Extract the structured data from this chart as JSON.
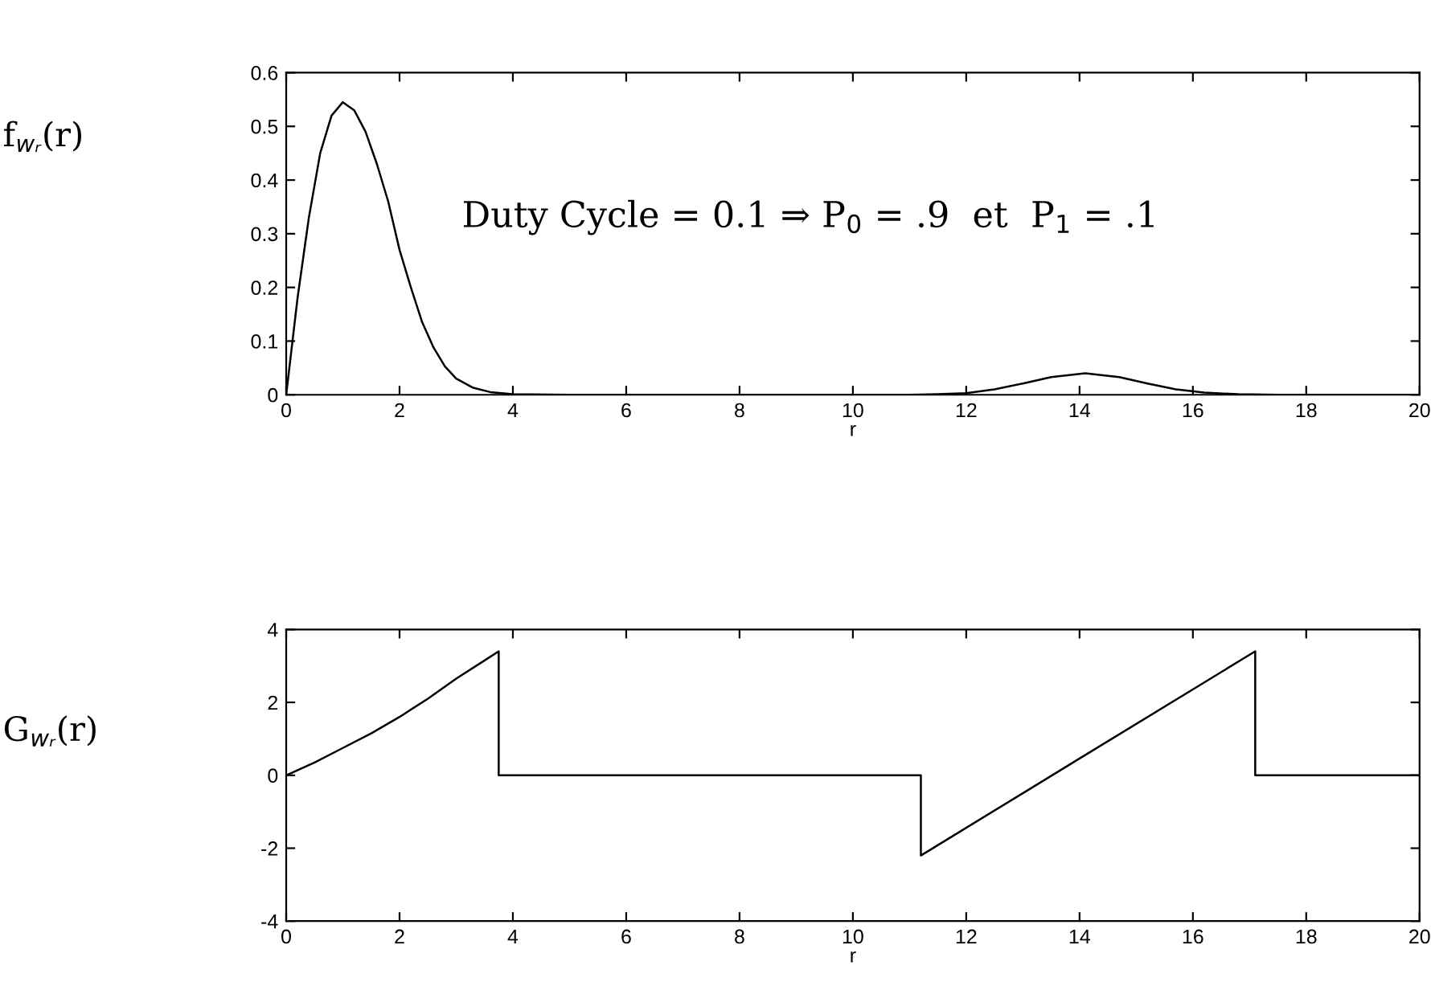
{
  "chart_data": [
    {
      "type": "line",
      "xlabel": "r",
      "ylabel": "f$_{wᵣ}$(r)",
      "annotations": [
        "Duty Cycle = 0.1 ⇒ P$_{0}$ = .9  et  P$_{1}$ = .1"
      ],
      "xlim": [
        0,
        20
      ],
      "ylim": [
        0,
        0.6
      ],
      "xticks": [
        0,
        2,
        4,
        6,
        8,
        10,
        12,
        14,
        16,
        18,
        20
      ],
      "yticks": [
        0,
        0.1,
        0.2,
        0.3,
        0.4,
        0.5,
        0.6
      ],
      "grid": false,
      "legend": false,
      "series": [
        {
          "color": "#000000",
          "x": [
            0,
            0.2,
            0.4,
            0.6,
            0.8,
            1.0,
            1.2,
            1.4,
            1.6,
            1.8,
            2.0,
            2.2,
            2.4,
            2.6,
            2.8,
            3.0,
            3.3,
            3.6,
            4,
            5,
            11,
            11.5,
            12,
            12.5,
            13,
            13.5,
            14.1,
            14.7,
            15.2,
            15.7,
            16.2,
            16.8,
            17.5,
            20
          ],
          "values": [
            0,
            0.18,
            0.33,
            0.45,
            0.52,
            0.545,
            0.53,
            0.49,
            0.43,
            0.36,
            0.27,
            0.2,
            0.135,
            0.088,
            0.053,
            0.03,
            0.013,
            0.005,
            0.001,
            0,
            0,
            0.001,
            0.003,
            0.01,
            0.021,
            0.033,
            0.04,
            0.033,
            0.021,
            0.01,
            0.004,
            0.001,
            0,
            0
          ]
        }
      ]
    },
    {
      "type": "line",
      "xlabel": "r",
      "ylabel": "G$_{wᵣ}$(r)",
      "xlim": [
        0,
        20
      ],
      "ylim": [
        -4,
        4
      ],
      "xticks": [
        0,
        2,
        4,
        6,
        8,
        10,
        12,
        14,
        16,
        18,
        20
      ],
      "yticks": [
        -4,
        -2,
        0,
        2,
        4
      ],
      "grid": false,
      "legend": false,
      "series": [
        {
          "color": "#000000",
          "x": [
            0,
            0.5,
            1,
            1.5,
            2,
            2.5,
            3,
            3.5,
            3.75,
            3.75,
            11.2,
            11.2,
            14,
            17.1,
            17.1,
            20
          ],
          "values": [
            0,
            0.35,
            0.75,
            1.15,
            1.6,
            2.1,
            2.65,
            3.15,
            3.4,
            0,
            0,
            -2.2,
            0.46,
            3.4,
            0,
            0
          ]
        }
      ]
    }
  ]
}
